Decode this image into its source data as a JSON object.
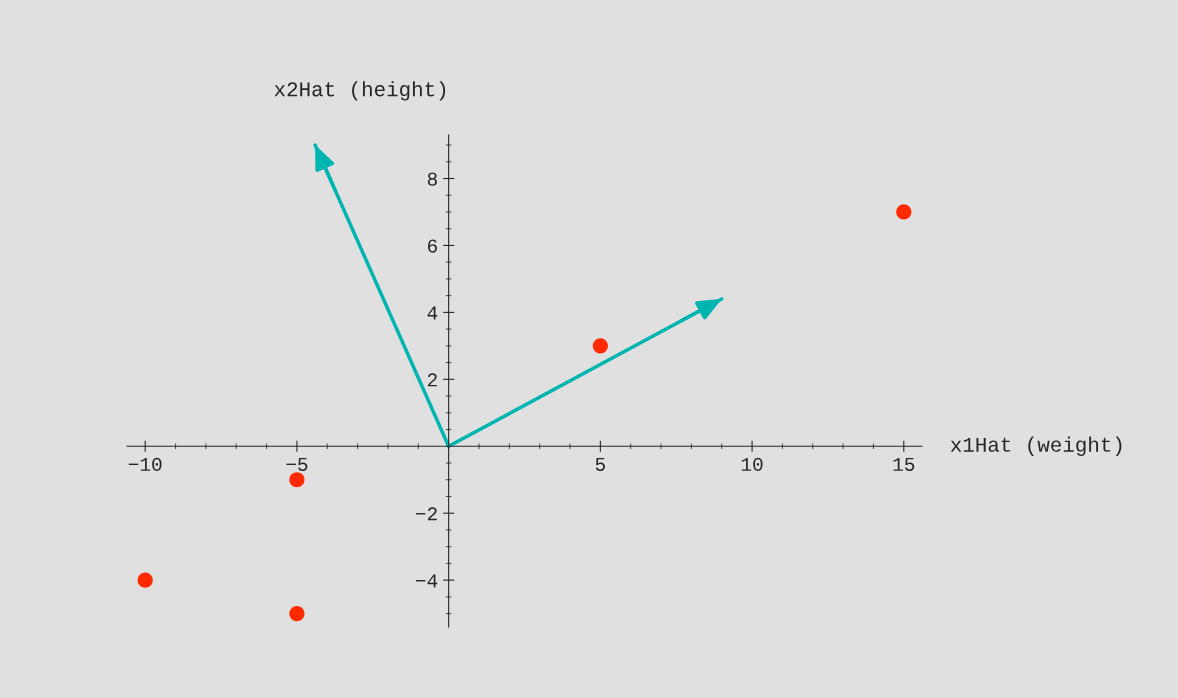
{
  "chart_data": {
    "type": "scatter",
    "xlabel": "x1Hat (weight)",
    "ylabel": "x2Hat (height)",
    "xlim": [
      -10.6,
      15.6
    ],
    "ylim": [
      -5.4,
      9.3
    ],
    "xticks": [
      -10,
      -5,
      5,
      10,
      15
    ],
    "yticks": [
      -4,
      -2,
      2,
      4,
      6,
      8
    ],
    "grid": false,
    "legend": false,
    "series": [
      {
        "color": "#ff2a00",
        "marker": "circle",
        "x": [
          -10,
          -5,
          -5,
          5,
          15
        ],
        "values": [
          -4,
          -1,
          -5,
          3,
          7
        ]
      },
      {
        "type": "line",
        "color": "#00b4b0",
        "marker": "none",
        "x": [
          0,
          9
        ],
        "values": [
          0,
          4.4
        ]
      },
      {
        "type": "line",
        "color": "#00b4b0",
        "marker": "none",
        "x": [
          0,
          -4.4
        ],
        "values": [
          0,
          9
        ]
      }
    ]
  }
}
